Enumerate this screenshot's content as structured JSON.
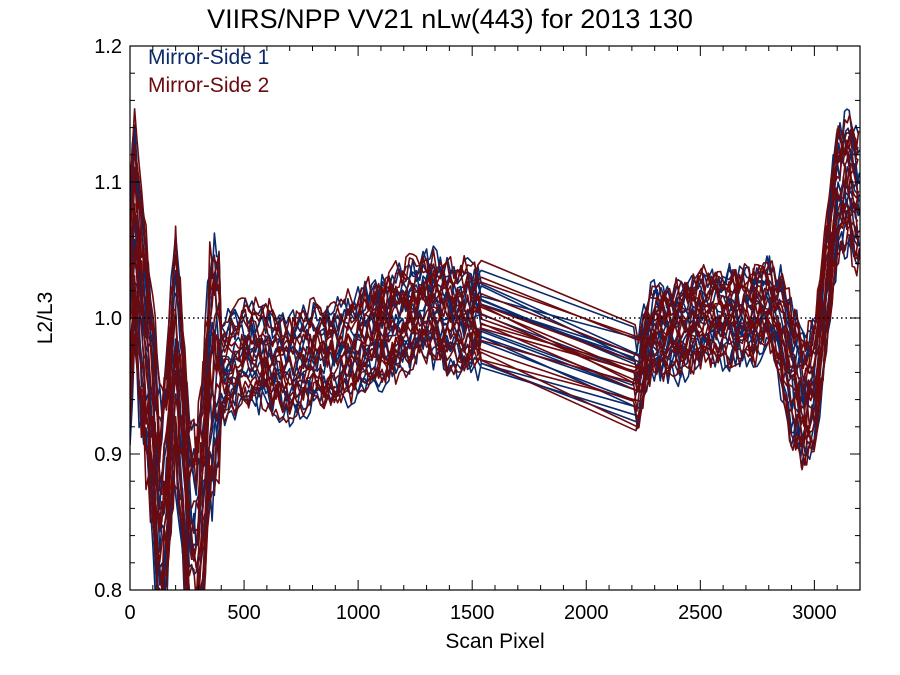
{
  "chart_data": {
    "type": "line",
    "title": "VIIRS/NPP VV21 nLw(443) for 2013 130",
    "xlabel": "Scan Pixel",
    "ylabel": "L2/L3",
    "xlim": [
      0,
      3200
    ],
    "ylim": [
      0.8,
      1.2
    ],
    "xticks": [
      0,
      500,
      1000,
      1500,
      2000,
      2500,
      3000
    ],
    "yticks": [
      0.8,
      0.9,
      1.0,
      1.1,
      1.2
    ],
    "xtick_labels": [
      "0",
      "500",
      "1000",
      "1500",
      "2000",
      "2500",
      "3000"
    ],
    "ytick_labels": [
      "0.8",
      "0.9",
      "1.0",
      "1.1",
      "1.2"
    ],
    "reference_line": {
      "y": 1.0,
      "style": "dotted"
    },
    "grid": false,
    "legend_position": "top-left",
    "series": [
      {
        "name": "Mirror-Side 1",
        "color": "#0b2a6b"
      },
      {
        "name": "Mirror-Side 2",
        "color": "#6b0a0f"
      }
    ],
    "profile": {
      "x": [
        0,
        20,
        40,
        60,
        80,
        100,
        130,
        160,
        200,
        230,
        260,
        290,
        320,
        350,
        400,
        500,
        600,
        700,
        800,
        900,
        1000,
        1100,
        1200,
        1300,
        1400,
        1500,
        1560,
        2200,
        2230,
        2260,
        2300,
        2400,
        2500,
        2600,
        2700,
        2800,
        2850,
        2900,
        2950,
        3000,
        3050,
        3100,
        3150,
        3200
      ],
      "y": [
        1.0,
        1.06,
        1.02,
        0.99,
        0.96,
        0.92,
        0.85,
        0.88,
        0.97,
        0.91,
        0.83,
        0.82,
        0.87,
        0.95,
        0.96,
        0.97,
        0.97,
        0.96,
        0.97,
        0.97,
        0.98,
        0.99,
        1.0,
        1.01,
        1.0,
        1.0,
        1.0,
        0.96,
        0.95,
        0.98,
        0.99,
        0.99,
        1.0,
        1.0,
        1.0,
        1.01,
        0.99,
        0.96,
        0.94,
        0.95,
        1.02,
        1.09,
        1.1,
        1.08
      ]
    }
  }
}
